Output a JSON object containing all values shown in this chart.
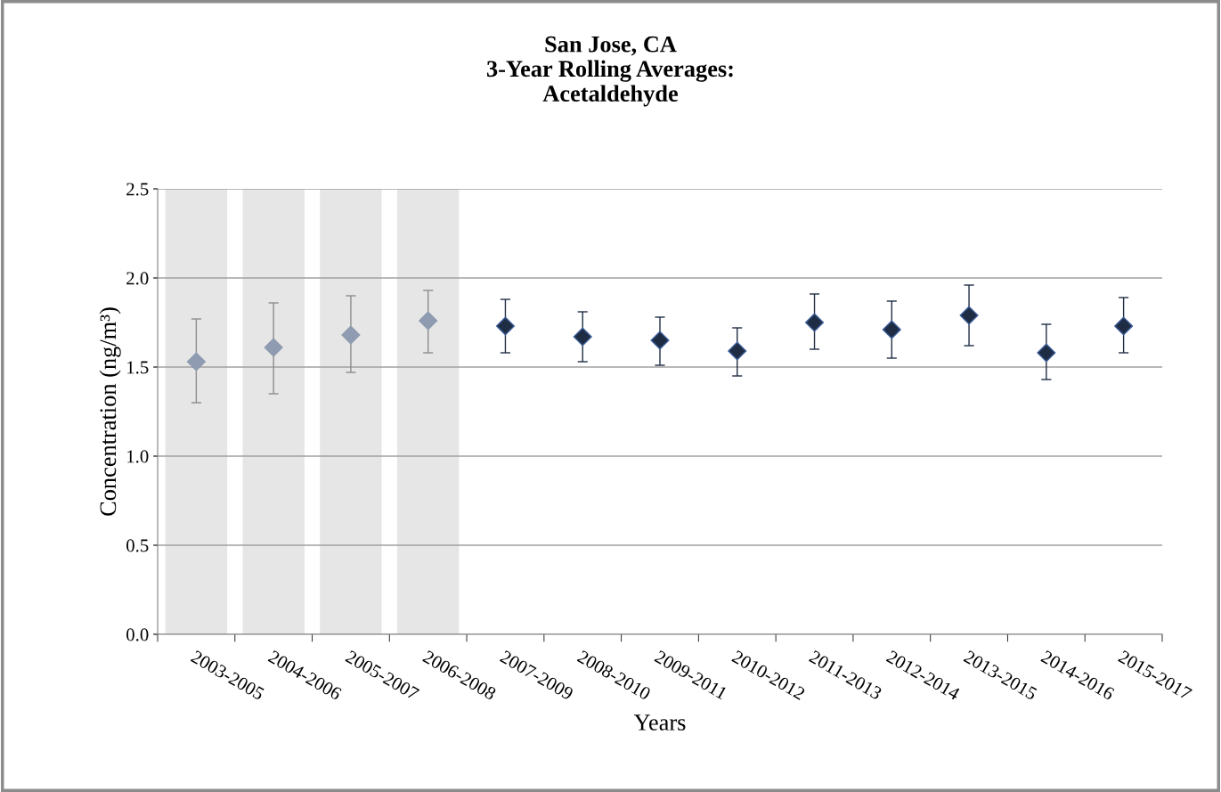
{
  "chart_data": {
    "type": "scatter",
    "title": "San Jose, CA\n3-Year Rolling Averages:\nAcetaldehyde",
    "xlabel": "Years",
    "ylabel": "Concentration (ng/m³)",
    "categories": [
      "2003-2005",
      "2004-2006",
      "2005-2007",
      "2006-2008",
      "2007-2009",
      "2008-2010",
      "2009-2011",
      "2010-2012",
      "2011-2013",
      "2012-2014",
      "2013-2015",
      "2014-2016",
      "2015-2017"
    ],
    "series": [
      {
        "color": "#8e9bb0",
        "values": [
          1.53,
          1.61,
          1.68,
          1.76,
          null,
          null,
          null,
          null,
          null,
          null,
          null,
          null,
          null
        ],
        "errors": [
          [
            1.3,
            1.77
          ],
          [
            1.35,
            1.86
          ],
          [
            1.47,
            1.9
          ],
          [
            1.58,
            1.93
          ],
          null,
          null,
          null,
          null,
          null,
          null,
          null,
          null,
          null
        ]
      },
      {
        "color": "#1f2d44",
        "values": [
          null,
          null,
          null,
          null,
          1.73,
          1.67,
          1.65,
          1.59,
          1.75,
          1.71,
          1.79,
          1.58,
          1.73
        ],
        "errors": [
          null,
          null,
          null,
          null,
          [
            1.58,
            1.88
          ],
          [
            1.53,
            1.81
          ],
          [
            1.51,
            1.78
          ],
          [
            1.45,
            1.72
          ],
          [
            1.6,
            1.91
          ],
          [
            1.55,
            1.87
          ],
          [
            1.62,
            1.96
          ],
          [
            1.43,
            1.74
          ],
          [
            1.58,
            1.89
          ]
        ]
      }
    ],
    "bands": [
      {
        "axis": "x",
        "from": "2003-2005",
        "to": "2003-2005",
        "color": "#e6e6e6"
      },
      {
        "axis": "x",
        "from": "2004-2006",
        "to": "2004-2006",
        "color": "#e6e6e6"
      },
      {
        "axis": "x",
        "from": "2005-2007",
        "to": "2005-2007",
        "color": "#e6e6e6"
      },
      {
        "axis": "x",
        "from": "2006-2008",
        "to": "2006-2008",
        "color": "#e6e6e6"
      }
    ],
    "ylim": [
      0,
      2.5
    ],
    "yticks": [
      {
        "value": 0,
        "label": "0.0"
      },
      {
        "value": 0.5,
        "label": "0.5"
      },
      {
        "value": 1,
        "label": "1.0"
      },
      {
        "value": 1.5,
        "label": "1.5"
      },
      {
        "value": 2,
        "label": "2.0"
      },
      {
        "value": 2.5,
        "label": "2.5"
      }
    ],
    "grid": "y",
    "marker": "diamond",
    "legend": false
  }
}
